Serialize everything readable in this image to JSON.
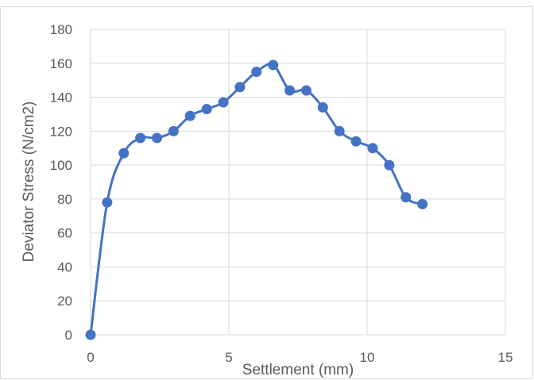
{
  "chart_data": {
    "type": "scatter",
    "title": "",
    "xlabel": "Settlement (mm)",
    "ylabel": "Deviator Stress (N/cm2)",
    "xlim": [
      0,
      15
    ],
    "ylim": [
      0,
      180
    ],
    "x_ticks": [
      0,
      5,
      10,
      15
    ],
    "y_ticks": [
      0,
      20,
      40,
      60,
      80,
      100,
      120,
      140,
      160,
      180
    ],
    "grid": true,
    "legend": "none",
    "line_style": "smooth",
    "series_color": "#4472c4",
    "series": [
      {
        "x": [
          0,
          0.6,
          1.2,
          1.8,
          2.4,
          3.0,
          3.6,
          4.2,
          4.8,
          5.4,
          6.0,
          6.6,
          7.2,
          7.8,
          8.4,
          9.0,
          9.6,
          10.2,
          10.8,
          11.4,
          12.0
        ],
        "y": [
          0,
          78,
          107,
          116,
          116,
          120,
          129,
          133,
          137,
          146,
          155,
          159,
          144,
          144,
          134,
          120,
          114,
          110,
          100,
          81,
          77
        ]
      }
    ]
  }
}
